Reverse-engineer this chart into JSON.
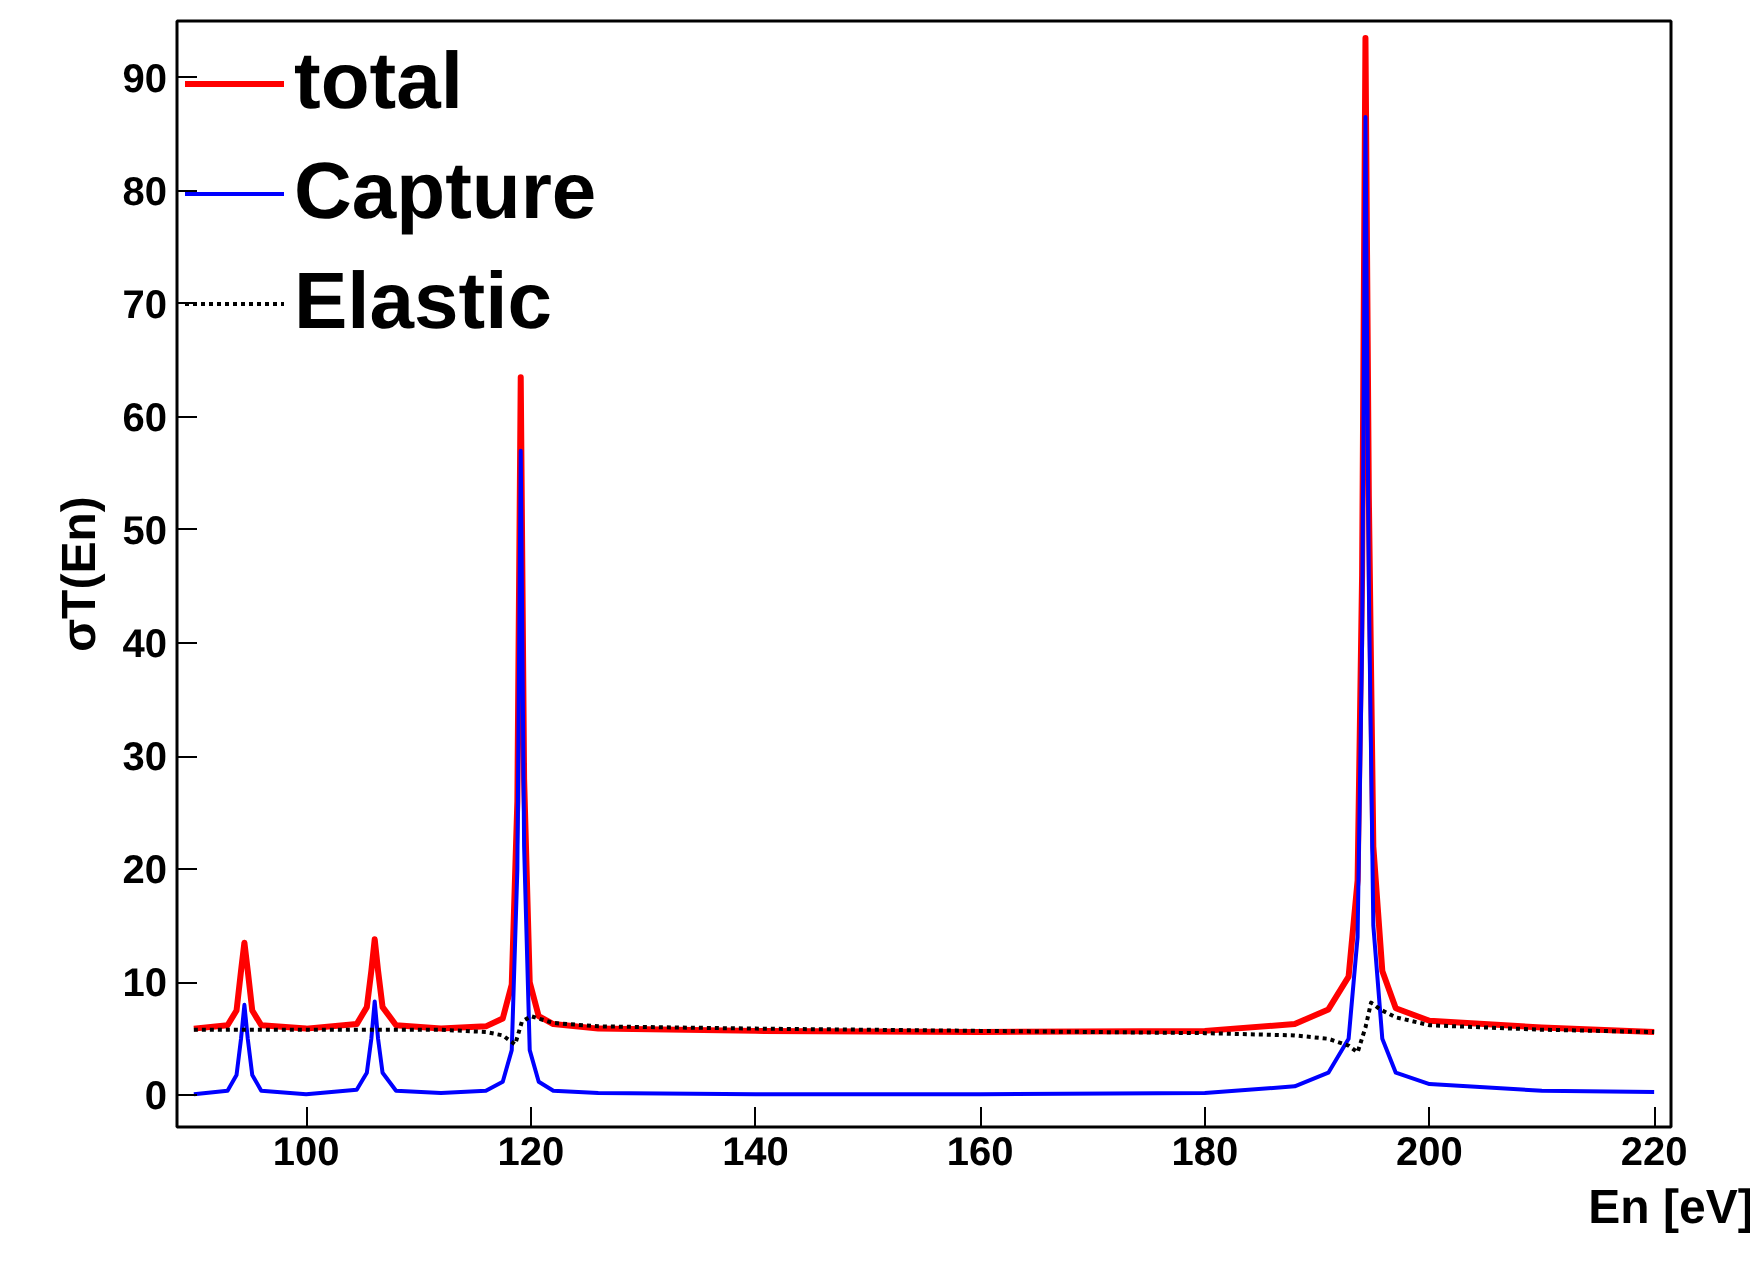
{
  "chart_data": {
    "type": "line",
    "xlabel": "En [eV]",
    "ylabel": "σT(En)",
    "xlim": [
      88.5,
      221.5
    ],
    "ylim": [
      -2.8,
      95
    ],
    "xticks": [
      100,
      120,
      140,
      160,
      180,
      200,
      220
    ],
    "yticks": [
      0,
      10,
      20,
      30,
      40,
      50,
      60,
      70,
      80,
      90
    ],
    "grid": false,
    "legend": "top left",
    "marker": "none",
    "series": [
      {
        "name": "total",
        "color": "#ff0000",
        "line_style": "solid",
        "x": [
          90,
          93,
          93.8,
          94.2,
          94.5,
          94.8,
          95.2,
          96,
          100,
          104.5,
          105.4,
          105.8,
          106.1,
          106.4,
          106.8,
          108,
          112,
          116,
          117.5,
          118.3,
          118.8,
          119.1,
          119.4,
          119.9,
          120.7,
          122,
          126,
          140,
          160,
          180,
          188,
          191,
          192.8,
          193.6,
          194.0,
          194.3,
          194.6,
          195.0,
          195.8,
          197,
          200,
          210,
          220
        ],
        "values": [
          5.9,
          6.2,
          7.5,
          11,
          13.5,
          11,
          7.5,
          6.2,
          5.9,
          6.3,
          7.8,
          11,
          13.8,
          11,
          7.8,
          6.2,
          5.9,
          6.1,
          6.8,
          9.8,
          26,
          63.5,
          28,
          10,
          7.0,
          6.3,
          5.9,
          5.7,
          5.6,
          5.7,
          6.3,
          7.6,
          10.5,
          19,
          46,
          93.5,
          53,
          22,
          11,
          7.7,
          6.6,
          6.0,
          5.6
        ]
      },
      {
        "name": "Capture",
        "color": "#0000ff",
        "line_style": "solid",
        "x": [
          90,
          93,
          93.8,
          94.2,
          94.5,
          94.8,
          95.2,
          96,
          100,
          104.5,
          105.4,
          105.8,
          106.1,
          106.4,
          106.8,
          108,
          112,
          116,
          117.5,
          118.3,
          118.8,
          119.1,
          119.4,
          119.9,
          120.7,
          122,
          126,
          140,
          160,
          180,
          188,
          191,
          192.8,
          193.6,
          194.0,
          194.3,
          194.6,
          195.0,
          195.8,
          197,
          200,
          210,
          220
        ],
        "values": [
          0.1,
          0.4,
          1.8,
          5,
          8,
          5,
          1.8,
          0.4,
          0.1,
          0.5,
          2,
          5,
          8.3,
          5,
          2,
          0.4,
          0.2,
          0.4,
          1.2,
          4,
          20,
          57,
          22,
          4,
          1.2,
          0.4,
          0.2,
          0.1,
          0.1,
          0.2,
          0.8,
          2.0,
          5,
          14,
          40,
          86.5,
          45,
          15,
          5,
          2,
          1.0,
          0.4,
          0.3
        ]
      },
      {
        "name": "Elastic",
        "color": "#000000",
        "line_style": "dotted",
        "x": [
          90,
          100,
          112,
          116,
          117.5,
          118.6,
          119.2,
          120,
          122,
          126,
          140,
          160,
          180,
          188,
          191,
          192.8,
          193.6,
          194.3,
          194.8,
          195.6,
          197,
          200,
          210,
          220
        ],
        "values": [
          5.8,
          5.8,
          5.8,
          5.6,
          5.3,
          4.5,
          6.5,
          7.0,
          6.4,
          6.1,
          5.9,
          5.7,
          5.5,
          5.3,
          5.0,
          4.4,
          3.8,
          6,
          8.2,
          7.6,
          6.9,
          6.2,
          5.8,
          5.6
        ]
      }
    ]
  }
}
